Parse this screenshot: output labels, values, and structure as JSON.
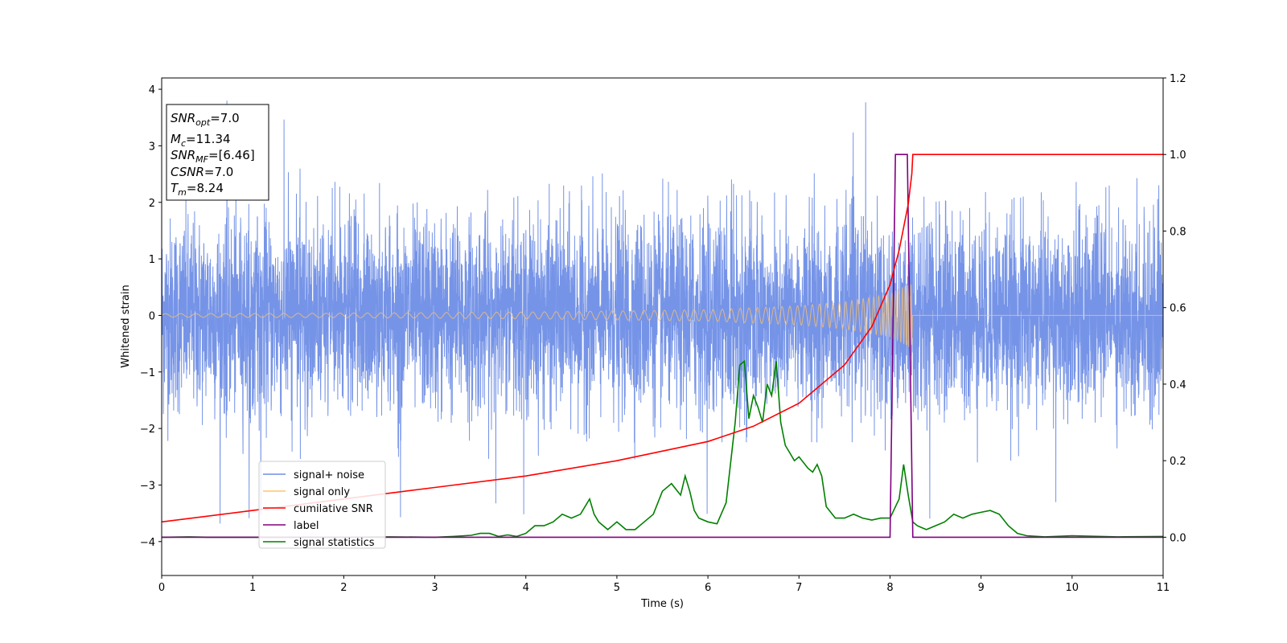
{
  "chart_data": {
    "type": "line",
    "xlabel": "Time (s)",
    "ylabel": "Whitened strain",
    "xlim": [
      0,
      11
    ],
    "ylim_left": [
      -4.6,
      4.2
    ],
    "ylim_right": [
      -0.1,
      1.2
    ],
    "x_ticks": [
      "0",
      "1",
      "2",
      "3",
      "4",
      "5",
      "6",
      "7",
      "8",
      "9",
      "10",
      "11"
    ],
    "y_ticks_left": [
      "4",
      "3",
      "2",
      "1",
      "0",
      "−1",
      "−2",
      "−3",
      "−4"
    ],
    "y_ticks_right": [
      "1.2",
      "1.0",
      "0.8",
      "0.6",
      "0.4",
      "0.2",
      "0.0"
    ],
    "grid": false,
    "legend_position": "lower-left",
    "series": [
      {
        "name": "signal+ noise",
        "color": "#6f8ee6",
        "axis": "left",
        "description_values": {
          "envelope_min": -4.1,
          "envelope_max": 3.8,
          "typical_abs": 2.2
        }
      },
      {
        "name": "signal only",
        "color": "#ffc36b",
        "axis": "left",
        "x": [
          0,
          2,
          4,
          6,
          7,
          7.5,
          8,
          8.2,
          8.24,
          8.25,
          11
        ],
        "amplitude": [
          0.03,
          0.04,
          0.06,
          0.1,
          0.17,
          0.24,
          0.38,
          0.55,
          0.6,
          0.0,
          0.0
        ]
      },
      {
        "name": "cumilative SNR",
        "color": "#ff0000",
        "axis": "right",
        "x": [
          0,
          1,
          2,
          3,
          4,
          5,
          6,
          6.5,
          7,
          7.5,
          7.8,
          8.0,
          8.1,
          8.2,
          8.24,
          8.25,
          11
        ],
        "values": [
          0.04,
          0.07,
          0.1,
          0.13,
          0.16,
          0.2,
          0.25,
          0.29,
          0.35,
          0.45,
          0.55,
          0.66,
          0.75,
          0.87,
          0.95,
          1.0,
          1.0
        ]
      },
      {
        "name": "label",
        "color": "#800080",
        "axis": "right",
        "x": [
          0,
          8.0,
          8.06,
          8.19,
          8.25,
          11
        ],
        "values": [
          0,
          0,
          1,
          1,
          0,
          0
        ]
      },
      {
        "name": "signal statistics",
        "color": "#008000",
        "axis": "right",
        "x": [
          0,
          0.3,
          0.5,
          1,
          1.5,
          2,
          2.5,
          3,
          3.2,
          3.4,
          3.5,
          3.6,
          3.7,
          3.8,
          3.9,
          4,
          4.1,
          4.2,
          4.3,
          4.4,
          4.5,
          4.6,
          4.7,
          4.75,
          4.8,
          4.9,
          5.0,
          5.1,
          5.2,
          5.3,
          5.4,
          5.5,
          5.6,
          5.7,
          5.75,
          5.8,
          5.85,
          5.9,
          6.0,
          6.1,
          6.2,
          6.3,
          6.35,
          6.4,
          6.45,
          6.5,
          6.55,
          6.6,
          6.65,
          6.7,
          6.75,
          6.8,
          6.85,
          6.9,
          6.95,
          7.0,
          7.1,
          7.15,
          7.2,
          7.25,
          7.3,
          7.4,
          7.5,
          7.6,
          7.7,
          7.8,
          7.9,
          8.0,
          8.1,
          8.15,
          8.2,
          8.25,
          8.3,
          8.4,
          8.5,
          8.6,
          8.7,
          8.8,
          8.9,
          9.0,
          9.1,
          9.2,
          9.3,
          9.4,
          9.5,
          9.7,
          10,
          10.5,
          11
        ],
        "values": [
          0.0,
          0.001,
          0.0,
          0.0,
          0.0,
          0.0,
          0.001,
          0.0,
          0.002,
          0.005,
          0.01,
          0.01,
          0.002,
          0.006,
          0.002,
          0.01,
          0.03,
          0.03,
          0.04,
          0.06,
          0.05,
          0.06,
          0.1,
          0.06,
          0.04,
          0.02,
          0.04,
          0.02,
          0.02,
          0.04,
          0.06,
          0.12,
          0.14,
          0.11,
          0.16,
          0.12,
          0.07,
          0.05,
          0.04,
          0.035,
          0.09,
          0.3,
          0.45,
          0.46,
          0.31,
          0.37,
          0.34,
          0.3,
          0.4,
          0.37,
          0.46,
          0.3,
          0.24,
          0.22,
          0.2,
          0.21,
          0.18,
          0.17,
          0.19,
          0.16,
          0.08,
          0.05,
          0.05,
          0.06,
          0.05,
          0.045,
          0.05,
          0.05,
          0.1,
          0.19,
          0.11,
          0.04,
          0.03,
          0.02,
          0.03,
          0.04,
          0.06,
          0.05,
          0.06,
          0.065,
          0.07,
          0.06,
          0.03,
          0.01,
          0.004,
          0.001,
          0.004,
          0.001,
          0.002
        ]
      }
    ]
  },
  "info_box": {
    "snr_opt_label": "SNR",
    "snr_opt_sub": "opt",
    "snr_opt_value": "=7.0",
    "mc_label": "M",
    "mc_sub": "c",
    "mc_value": "=11.34",
    "snr_mf_label": "SNR",
    "snr_mf_sub": "MF",
    "snr_mf_value": "=[6.46]",
    "csnr_label": "CSNR",
    "csnr_value": "=7.0",
    "tm_label": "T",
    "tm_sub": "m",
    "tm_value": "=8.24"
  }
}
